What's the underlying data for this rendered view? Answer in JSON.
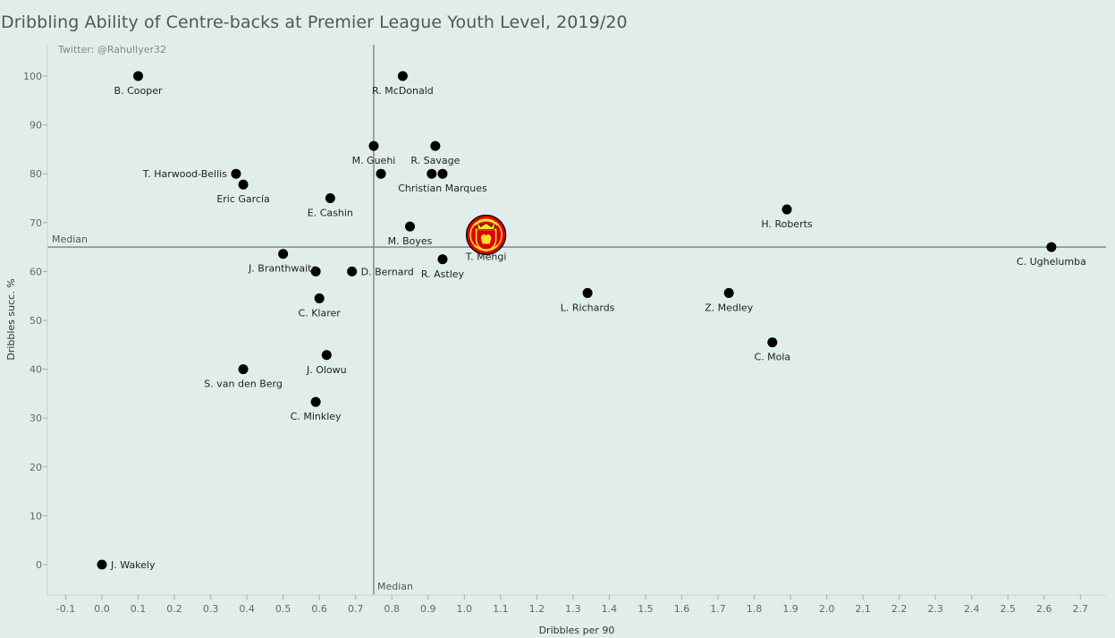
{
  "title": "Dribbling Ability of Centre-backs at Premier League Youth Level, 2019/20",
  "credit": "Twitter: @RahulIyer32",
  "chart_data": {
    "type": "scatter",
    "title": "Dribbling Ability of Centre-backs at Premier League Youth Level, 2019/20",
    "xlabel": "Dribbles per 90",
    "ylabel": "Dribbles succ. %",
    "xlim": [
      -0.15,
      2.8
    ],
    "ylim": [
      -6,
      107
    ],
    "xticks": [
      -0.1,
      0.0,
      0.1,
      0.2,
      0.3,
      0.4,
      0.5,
      0.6,
      0.7,
      0.8,
      0.9,
      1.0,
      1.1,
      1.2,
      1.3,
      1.4,
      1.5,
      1.6,
      1.7,
      1.8,
      1.9,
      2.0,
      2.1,
      2.2,
      2.3,
      2.4,
      2.5,
      2.6,
      2.7
    ],
    "xtick_labels": [
      "-0.1",
      "0.0",
      "0.1",
      "0.2",
      "0.3",
      "0.4",
      "0.5",
      "0.6",
      "0.7",
      "0.8",
      "0.9",
      "1.0",
      "1.1",
      "1.2",
      "1.3",
      "1.4",
      "1.5",
      "1.6",
      "1.7",
      "1.8",
      "1.9",
      "2.0",
      "2.1",
      "2.2",
      "2.3",
      "2.4",
      "2.5",
      "2.6",
      "2.7"
    ],
    "yticks": [
      0,
      10,
      20,
      30,
      40,
      50,
      60,
      70,
      80,
      90,
      100
    ],
    "ytick_labels": [
      "0",
      "10",
      "20",
      "30",
      "40",
      "50",
      "60",
      "70",
      "80",
      "90",
      "100"
    ],
    "median_x": 0.75,
    "median_y": 65,
    "median_label": "Median",
    "grid": false,
    "points": [
      {
        "name": "B. Cooper",
        "x": 0.1,
        "y": 100,
        "label_pos": "below"
      },
      {
        "name": "R. McDonald",
        "x": 0.83,
        "y": 100,
        "label_pos": "below"
      },
      {
        "name": "M. Guehi",
        "x": 0.75,
        "y": 85.7,
        "label_pos": "below"
      },
      {
        "name": "R. Savage",
        "x": 0.92,
        "y": 85.7,
        "label_pos": "below"
      },
      {
        "name": "T. Harwood-Bellis",
        "x": 0.37,
        "y": 80,
        "label_pos": "left"
      },
      {
        "name": "Eric García",
        "x": 0.39,
        "y": 77.8,
        "label_pos": "below"
      },
      {
        "name": "",
        "x": 0.77,
        "y": 80,
        "label_pos": "none"
      },
      {
        "name": "",
        "x": 0.91,
        "y": 80,
        "label_pos": "none"
      },
      {
        "name": "Christian Marques",
        "x": 0.94,
        "y": 80,
        "label_pos": "below"
      },
      {
        "name": "E. Cashin",
        "x": 0.63,
        "y": 75,
        "label_pos": "below"
      },
      {
        "name": "H. Roberts",
        "x": 1.89,
        "y": 72.7,
        "label_pos": "below"
      },
      {
        "name": "M. Boyes",
        "x": 0.85,
        "y": 69.2,
        "label_pos": "below"
      },
      {
        "name": "T. Mengi",
        "x": 1.06,
        "y": 67.5,
        "label_pos": "below",
        "logo": true
      },
      {
        "name": "C. Ughelumba",
        "x": 2.62,
        "y": 65,
        "label_pos": "below"
      },
      {
        "name": "J. Branthwaite",
        "x": 0.5,
        "y": 63.6,
        "label_pos": "below"
      },
      {
        "name": "",
        "x": 0.59,
        "y": 60,
        "label_pos": "none"
      },
      {
        "name": "D. Bernard",
        "x": 0.69,
        "y": 60,
        "label_pos": "right"
      },
      {
        "name": "R. Astley",
        "x": 0.94,
        "y": 62.5,
        "label_pos": "below"
      },
      {
        "name": "L. Richards",
        "x": 1.34,
        "y": 55.6,
        "label_pos": "below"
      },
      {
        "name": "Z. Medley",
        "x": 1.73,
        "y": 55.6,
        "label_pos": "below"
      },
      {
        "name": "C. Klarer",
        "x": 0.6,
        "y": 54.5,
        "label_pos": "below"
      },
      {
        "name": "C. Mola",
        "x": 1.85,
        "y": 45.5,
        "label_pos": "below"
      },
      {
        "name": "J. Olowu",
        "x": 0.62,
        "y": 42.9,
        "label_pos": "below"
      },
      {
        "name": "S. van den Berg",
        "x": 0.39,
        "y": 40,
        "label_pos": "below"
      },
      {
        "name": "C. Minkley",
        "x": 0.59,
        "y": 33.3,
        "label_pos": "below"
      },
      {
        "name": "J. Wakely",
        "x": 0.0,
        "y": 0,
        "label_pos": "right"
      }
    ]
  },
  "colors": {
    "background": "#e0ede9",
    "point": "#000000",
    "median_line": "#888888",
    "logo_red": "#da020e",
    "logo_yellow": "#fbe122"
  },
  "logo": {
    "icon": "manchester-united-crest"
  }
}
